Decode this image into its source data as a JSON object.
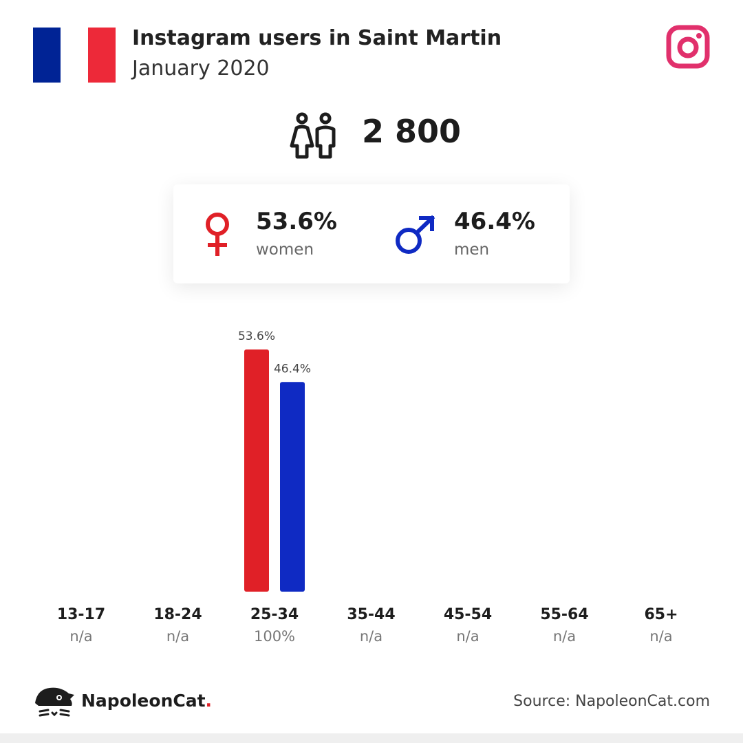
{
  "header": {
    "title": "Instagram users in Saint Martin",
    "subtitle": "January 2020",
    "flag_colors": [
      "#002395",
      "#ffffff",
      "#ed2939"
    ],
    "platform_icon": "instagram-icon",
    "platform_color": "#e1306c"
  },
  "summary": {
    "icon": "people-icon",
    "total_users": "2 800"
  },
  "gender": {
    "female": {
      "pct": "53.6%",
      "label": "women",
      "icon": "female-icon",
      "color": "#e02027"
    },
    "male": {
      "pct": "46.4%",
      "label": "men",
      "icon": "male-icon",
      "color": "#0f2ac3"
    }
  },
  "chart_data": {
    "type": "bar",
    "title": "",
    "xlabel": "",
    "ylabel": "",
    "categories": [
      "13-17",
      "18-24",
      "25-34",
      "35-44",
      "45-54",
      "55-64",
      "65+"
    ],
    "category_totals": [
      "n/a",
      "n/a",
      "100%",
      "n/a",
      "n/a",
      "n/a",
      "n/a"
    ],
    "series": [
      {
        "values": [
          null,
          null,
          53.6,
          null,
          null,
          null,
          null
        ],
        "labels": [
          null,
          null,
          "53.6%",
          null,
          null,
          null,
          null
        ],
        "color": "#e02027"
      },
      {
        "values": [
          null,
          null,
          46.4,
          null,
          null,
          null,
          null
        ],
        "labels": [
          null,
          null,
          "46.4%",
          null,
          null,
          null,
          null
        ],
        "color": "#0f2ac3"
      }
    ],
    "ylim": [
      0,
      53.6
    ],
    "grid": false,
    "legend": "none"
  },
  "footer": {
    "brand_name": "NapoleonCat",
    "brand_dot": ".",
    "logo_icon": "napoleoncat-logo-icon",
    "source": "Source: NapoleonCat.com"
  }
}
